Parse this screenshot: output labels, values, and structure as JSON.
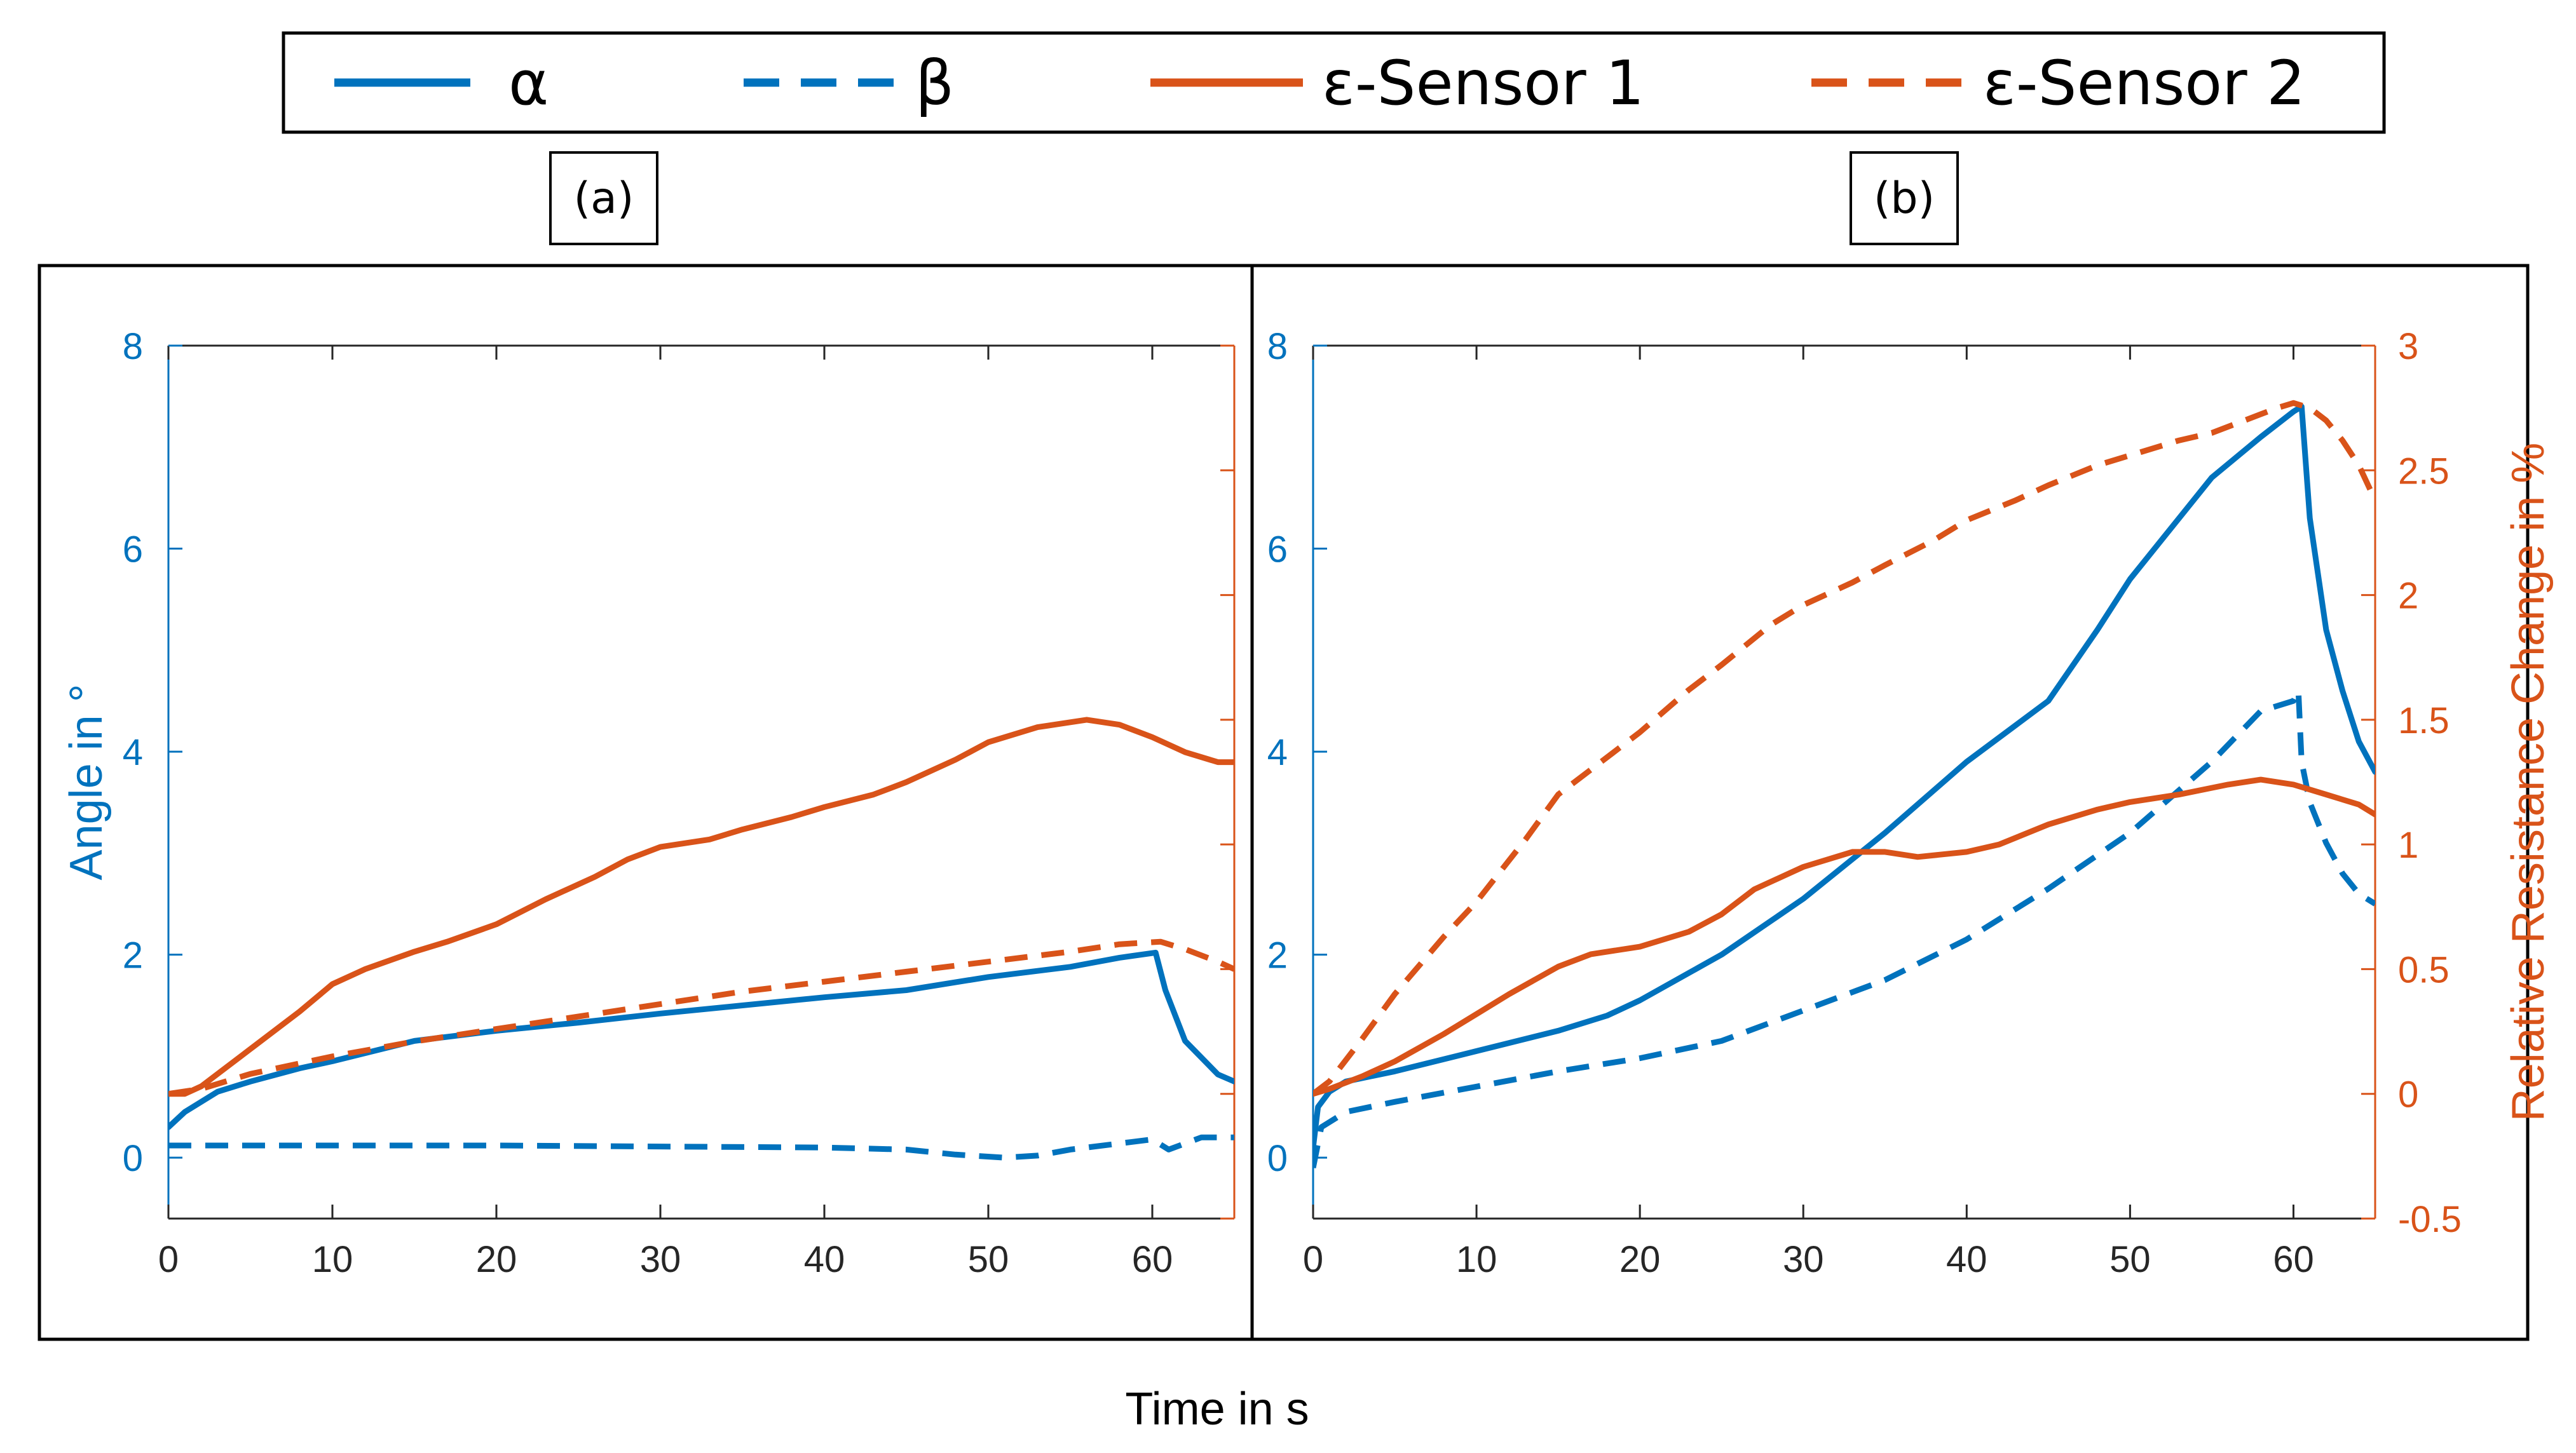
{
  "colors": {
    "blue": "#0072BD",
    "orange": "#D95319",
    "frame": "#000000"
  },
  "legend": [
    {
      "label": "α",
      "color": "#0072BD",
      "style": "solid"
    },
    {
      "label": "β",
      "color": "#0072BD",
      "style": "dashed"
    },
    {
      "label": "ε-Sensor 1",
      "color": "#D95319",
      "style": "solid"
    },
    {
      "label": "ε-Sensor 2",
      "color": "#D95319",
      "style": "dashed"
    }
  ],
  "xlabel": "Time in s",
  "chart_data": [
    {
      "type": "line",
      "panel_label": "(a)",
      "xlim": [
        0,
        65
      ],
      "x_ticks": [
        0,
        10,
        20,
        30,
        40,
        50,
        60
      ],
      "ylim_left": [
        -0.6,
        8
      ],
      "y_ticks_left": [
        0,
        2,
        4,
        6,
        8
      ],
      "ylabel_left": "Angle in °",
      "ylim_right": [
        -0.5,
        3
      ],
      "y_ticks_right": [],
      "ylabel_right": "",
      "series": [
        {
          "name": "α",
          "axis": "left",
          "color": "#0072BD",
          "style": "solid",
          "x": [
            0,
            1,
            3,
            5,
            8,
            10,
            15,
            20,
            25,
            30,
            35,
            40,
            45,
            50,
            55,
            58,
            60.2,
            60.8,
            62,
            64,
            65
          ],
          "y": [
            0.3,
            0.45,
            0.65,
            0.75,
            0.88,
            0.95,
            1.15,
            1.25,
            1.33,
            1.42,
            1.5,
            1.58,
            1.65,
            1.78,
            1.88,
            1.97,
            2.02,
            1.65,
            1.15,
            0.82,
            0.75
          ]
        },
        {
          "name": "β",
          "axis": "left",
          "color": "#0072BD",
          "style": "dashed",
          "x": [
            0,
            5,
            10,
            20,
            30,
            40,
            45,
            48,
            51,
            53,
            55,
            58,
            60,
            61,
            63,
            65
          ],
          "y": [
            0.12,
            0.12,
            0.12,
            0.12,
            0.11,
            0.1,
            0.08,
            0.03,
            0.0,
            0.02,
            0.08,
            0.14,
            0.18,
            0.08,
            0.2,
            0.2
          ]
        },
        {
          "name": "ε-Sensor 1",
          "axis": "right",
          "color": "#D95319",
          "style": "solid",
          "x": [
            0,
            1,
            2,
            3,
            5,
            8,
            10,
            12,
            15,
            17,
            20,
            23,
            26,
            28,
            30,
            33,
            35,
            38,
            40,
            43,
            45,
            48,
            50,
            53,
            56,
            58,
            60,
            62,
            64,
            65
          ],
          "y": [
            0.0,
            0.0,
            0.03,
            0.08,
            0.18,
            0.33,
            0.44,
            0.5,
            0.57,
            0.61,
            0.68,
            0.78,
            0.87,
            0.94,
            0.99,
            1.02,
            1.06,
            1.11,
            1.15,
            1.2,
            1.25,
            1.34,
            1.41,
            1.47,
            1.5,
            1.48,
            1.43,
            1.37,
            1.33,
            1.33
          ]
        },
        {
          "name": "ε-Sensor 2",
          "axis": "right",
          "color": "#D95319",
          "style": "dashed",
          "x": [
            0,
            2,
            5,
            10,
            15,
            20,
            25,
            30,
            35,
            40,
            45,
            50,
            55,
            58,
            60.5,
            62,
            64,
            65
          ],
          "y": [
            0.0,
            0.02,
            0.08,
            0.15,
            0.21,
            0.26,
            0.31,
            0.36,
            0.41,
            0.45,
            0.49,
            0.53,
            0.57,
            0.6,
            0.61,
            0.58,
            0.53,
            0.5
          ]
        }
      ]
    },
    {
      "type": "line",
      "panel_label": "(b)",
      "xlim": [
        0,
        65
      ],
      "x_ticks": [
        0,
        10,
        20,
        30,
        40,
        50,
        60
      ],
      "ylim_left": [
        -0.6,
        8
      ],
      "y_ticks_left": [
        0,
        2,
        4,
        6,
        8
      ],
      "ylabel_left": "",
      "ylim_right": [
        -0.5,
        3
      ],
      "y_ticks_right": [
        -0.5,
        0,
        0.5,
        1,
        1.5,
        2,
        2.5,
        3
      ],
      "y_tick_labels_right": [
        "-0.5",
        "0",
        "0.5",
        "1",
        "1.5",
        "2",
        "2.5",
        "3"
      ],
      "ylabel_right": "Relative Resistance Change in %",
      "series": [
        {
          "name": "α",
          "axis": "left",
          "color": "#0072BD",
          "style": "solid",
          "x": [
            0,
            0.3,
            1,
            2,
            5,
            10,
            15,
            18,
            20,
            25,
            30,
            35,
            40,
            45,
            48,
            50,
            55,
            58,
            60,
            60.5,
            61,
            62,
            63,
            64,
            65
          ],
          "y": [
            0.1,
            0.5,
            0.65,
            0.75,
            0.85,
            1.05,
            1.25,
            1.4,
            1.55,
            2.0,
            2.55,
            3.2,
            3.9,
            4.5,
            5.2,
            5.7,
            6.7,
            7.1,
            7.35,
            7.4,
            6.3,
            5.2,
            4.6,
            4.1,
            3.8
          ]
        },
        {
          "name": "β",
          "axis": "left",
          "color": "#0072BD",
          "style": "dashed",
          "x": [
            0,
            0.5,
            2,
            5,
            10,
            15,
            20,
            25,
            30,
            35,
            40,
            45,
            50,
            55,
            58,
            60,
            60.3,
            60.5,
            61,
            62,
            63,
            64,
            65
          ],
          "y": [
            -0.1,
            0.3,
            0.45,
            0.55,
            0.7,
            0.85,
            0.98,
            1.15,
            1.45,
            1.75,
            2.15,
            2.65,
            3.2,
            3.9,
            4.4,
            4.5,
            4.6,
            3.9,
            3.5,
            3.1,
            2.8,
            2.6,
            2.5
          ]
        },
        {
          "name": "ε-Sensor 1",
          "axis": "right",
          "color": "#D95319",
          "style": "solid",
          "x": [
            0,
            1,
            3,
            5,
            8,
            10,
            12,
            15,
            17,
            20,
            23,
            25,
            27,
            30,
            33,
            35,
            37,
            40,
            42,
            45,
            48,
            50,
            53,
            56,
            58,
            60,
            62,
            64,
            65
          ],
          "y": [
            0.0,
            0.02,
            0.07,
            0.13,
            0.24,
            0.32,
            0.4,
            0.51,
            0.56,
            0.59,
            0.65,
            0.72,
            0.82,
            0.91,
            0.97,
            0.97,
            0.95,
            0.97,
            1.0,
            1.08,
            1.14,
            1.17,
            1.2,
            1.24,
            1.26,
            1.24,
            1.2,
            1.16,
            1.12
          ]
        },
        {
          "name": "ε-Sensor 2",
          "axis": "right",
          "color": "#D95319",
          "style": "dashed",
          "x": [
            0,
            1,
            3,
            5,
            8,
            10,
            13,
            15,
            17,
            20,
            23,
            25,
            28,
            30,
            33,
            35,
            38,
            40,
            43,
            45,
            48,
            50,
            53,
            55,
            57,
            59,
            60,
            61,
            62,
            63,
            64,
            65
          ],
          "y": [
            0.0,
            0.05,
            0.22,
            0.4,
            0.63,
            0.77,
            1.02,
            1.2,
            1.3,
            1.45,
            1.62,
            1.72,
            1.88,
            1.96,
            2.05,
            2.12,
            2.22,
            2.3,
            2.38,
            2.44,
            2.52,
            2.56,
            2.62,
            2.65,
            2.7,
            2.75,
            2.77,
            2.75,
            2.7,
            2.62,
            2.52,
            2.38
          ]
        }
      ]
    }
  ]
}
